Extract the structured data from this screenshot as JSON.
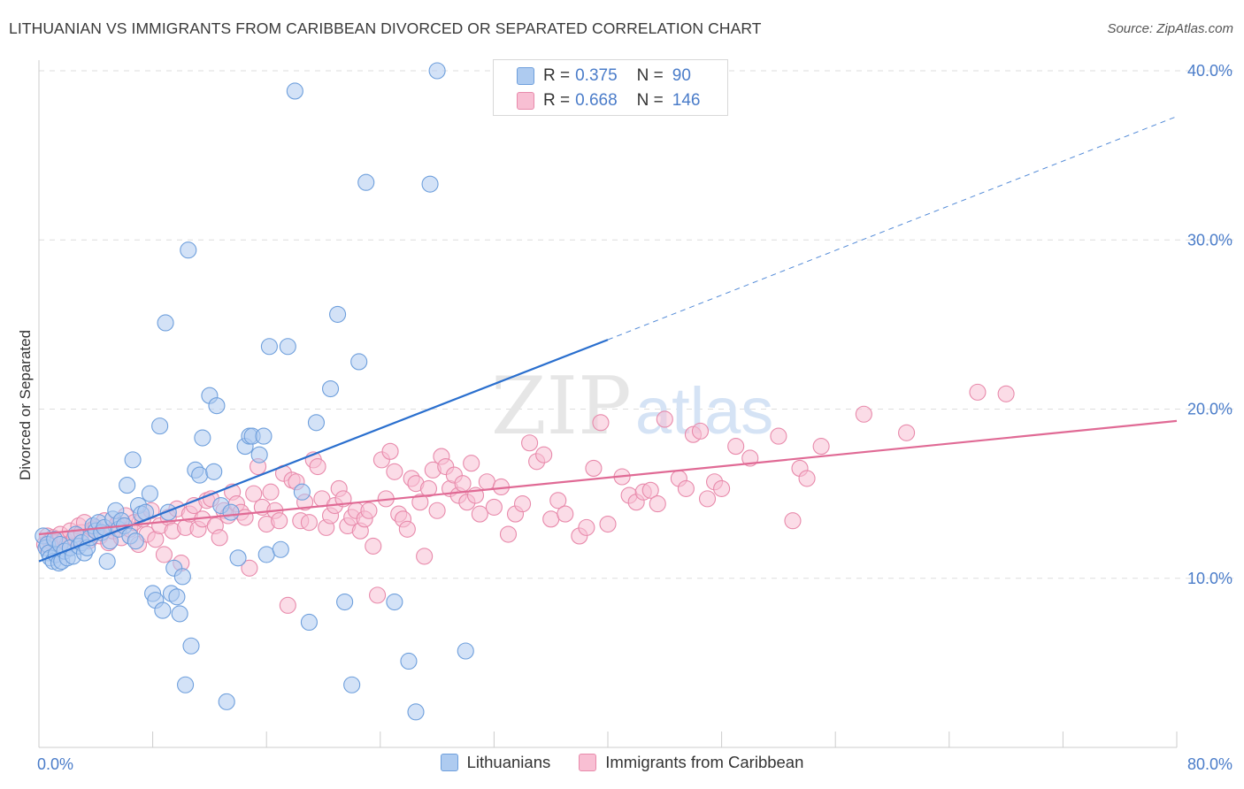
{
  "title": "LITHUANIAN VS IMMIGRANTS FROM CARIBBEAN DIVORCED OR SEPARATED CORRELATION CHART",
  "source": "Source: ZipAtlas.com",
  "watermark": "ZIPatlas",
  "colors": {
    "lithuanian_fill": "#aecbf0",
    "lithuanian_stroke": "#6e9fdc",
    "lithuanian_line": "#2a6fce",
    "caribbean_fill": "#f8bfd3",
    "caribbean_stroke": "#e88aab",
    "caribbean_line": "#e06a95",
    "tick_text": "#4a7cc9"
  },
  "legend": {
    "rows": [
      {
        "r_label": "R =",
        "r_value": "0.375",
        "n_label": "N =",
        "n_value": "90"
      },
      {
        "r_label": "R =",
        "r_value": "0.668",
        "n_label": "N =",
        "n_value": "146"
      }
    ]
  },
  "bottom_legend": [
    "Lithuanians",
    "Immigrants from Caribbean"
  ],
  "chart_data": {
    "type": "scatter",
    "title": "LITHUANIAN VS IMMIGRANTS FROM CARIBBEAN DIVORCED OR SEPARATED CORRELATION CHART",
    "xlabel": "",
    "ylabel": "Divorced or Separated",
    "xlim": [
      0,
      80
    ],
    "ylim": [
      0,
      40
    ],
    "x_tick_labels": [
      "0.0%",
      "80.0%"
    ],
    "y_ticks": [
      10,
      20,
      30,
      40
    ],
    "y_tick_labels": [
      "10.0%",
      "20.0%",
      "30.0%",
      "40.0%"
    ],
    "grid": true,
    "legend_position": "top-center",
    "series": [
      {
        "name": "Lithuanians",
        "r": 0.375,
        "n": 90,
        "trend": {
          "x": [
            0,
            40
          ],
          "y": [
            11.0,
            24.1
          ],
          "dashed_extension": {
            "x": [
              40,
              80
            ],
            "y": [
              24.1,
              37.3
            ]
          }
        },
        "points": [
          [
            0.3,
            12.5
          ],
          [
            0.5,
            11.8
          ],
          [
            0.6,
            12.0
          ],
          [
            0.7,
            11.5
          ],
          [
            0.8,
            11.2
          ],
          [
            1.0,
            11.0
          ],
          [
            1.1,
            12.3
          ],
          [
            1.2,
            11.4
          ],
          [
            1.4,
            10.9
          ],
          [
            1.5,
            12.0
          ],
          [
            1.6,
            11.0
          ],
          [
            1.8,
            11.6
          ],
          [
            2.0,
            11.2
          ],
          [
            2.2,
            11.8
          ],
          [
            2.4,
            11.3
          ],
          [
            2.6,
            12.6
          ],
          [
            2.8,
            11.9
          ],
          [
            3.0,
            12.1
          ],
          [
            3.2,
            11.5
          ],
          [
            3.4,
            11.8
          ],
          [
            3.6,
            12.4
          ],
          [
            3.8,
            13.1
          ],
          [
            4.0,
            12.8
          ],
          [
            4.2,
            13.3
          ],
          [
            4.4,
            12.7
          ],
          [
            4.6,
            13.0
          ],
          [
            4.8,
            11.0
          ],
          [
            5.0,
            12.2
          ],
          [
            5.2,
            13.5
          ],
          [
            5.4,
            14.0
          ],
          [
            5.6,
            12.9
          ],
          [
            5.8,
            13.4
          ],
          [
            6.0,
            13.1
          ],
          [
            6.2,
            15.5
          ],
          [
            6.4,
            12.5
          ],
          [
            6.6,
            17.0
          ],
          [
            6.8,
            12.2
          ],
          [
            7.0,
            14.3
          ],
          [
            7.2,
            13.8
          ],
          [
            7.5,
            13.9
          ],
          [
            7.8,
            15.0
          ],
          [
            8.0,
            9.1
          ],
          [
            8.2,
            8.7
          ],
          [
            8.5,
            19.0
          ],
          [
            8.7,
            8.1
          ],
          [
            8.9,
            25.1
          ],
          [
            9.1,
            13.9
          ],
          [
            9.3,
            9.1
          ],
          [
            9.5,
            10.6
          ],
          [
            9.7,
            8.9
          ],
          [
            9.9,
            7.9
          ],
          [
            10.1,
            10.1
          ],
          [
            10.3,
            3.7
          ],
          [
            10.5,
            29.4
          ],
          [
            10.7,
            6.0
          ],
          [
            11.0,
            16.4
          ],
          [
            11.3,
            16.1
          ],
          [
            11.5,
            18.3
          ],
          [
            12.0,
            20.8
          ],
          [
            12.3,
            16.3
          ],
          [
            12.5,
            20.2
          ],
          [
            12.8,
            14.3
          ],
          [
            13.2,
            2.7
          ],
          [
            13.5,
            13.9
          ],
          [
            14.0,
            11.2
          ],
          [
            14.5,
            17.8
          ],
          [
            14.8,
            18.4
          ],
          [
            15.0,
            18.4
          ],
          [
            15.5,
            17.3
          ],
          [
            15.8,
            18.4
          ],
          [
            16.0,
            11.4
          ],
          [
            16.2,
            23.7
          ],
          [
            17.0,
            11.7
          ],
          [
            17.5,
            23.7
          ],
          [
            18.0,
            38.8
          ],
          [
            18.5,
            15.1
          ],
          [
            19.0,
            7.4
          ],
          [
            19.5,
            19.2
          ],
          [
            20.5,
            21.2
          ],
          [
            21.0,
            25.6
          ],
          [
            21.5,
            8.6
          ],
          [
            22.0,
            3.7
          ],
          [
            22.5,
            22.8
          ],
          [
            23.0,
            33.4
          ],
          [
            25.0,
            8.6
          ],
          [
            26.0,
            5.1
          ],
          [
            26.5,
            2.1
          ],
          [
            27.5,
            33.3
          ],
          [
            28.0,
            40.0
          ],
          [
            30.0,
            5.7
          ]
        ]
      },
      {
        "name": "Immigrants from Caribbean",
        "r": 0.668,
        "n": 146,
        "trend": {
          "x": [
            0,
            80
          ],
          "y": [
            12.6,
            19.3
          ]
        },
        "points": [
          [
            0.4,
            12.0
          ],
          [
            0.6,
            12.5
          ],
          [
            0.8,
            12.2
          ],
          [
            1.0,
            12.4
          ],
          [
            1.2,
            12.1
          ],
          [
            1.5,
            12.6
          ],
          [
            1.8,
            12.3
          ],
          [
            2.0,
            12.0
          ],
          [
            2.2,
            12.8
          ],
          [
            2.5,
            12.4
          ],
          [
            2.8,
            13.1
          ],
          [
            3.0,
            12.7
          ],
          [
            3.2,
            13.3
          ],
          [
            3.5,
            12.2
          ],
          [
            3.8,
            12.9
          ],
          [
            4.0,
            13.0
          ],
          [
            4.3,
            12.5
          ],
          [
            4.6,
            13.4
          ],
          [
            4.9,
            12.1
          ],
          [
            5.2,
            12.8
          ],
          [
            5.5,
            13.2
          ],
          [
            5.8,
            12.4
          ],
          [
            6.1,
            13.7
          ],
          [
            6.4,
            12.9
          ],
          [
            6.7,
            13.3
          ],
          [
            7.0,
            12.0
          ],
          [
            7.3,
            13.5
          ],
          [
            7.6,
            12.6
          ],
          [
            7.9,
            14.0
          ],
          [
            8.2,
            12.3
          ],
          [
            8.5,
            13.1
          ],
          [
            8.8,
            11.4
          ],
          [
            9.1,
            13.6
          ],
          [
            9.4,
            12.8
          ],
          [
            9.7,
            14.1
          ],
          [
            10.0,
            10.9
          ],
          [
            10.3,
            13.0
          ],
          [
            10.6,
            13.8
          ],
          [
            10.9,
            14.3
          ],
          [
            11.2,
            12.9
          ],
          [
            11.5,
            13.5
          ],
          [
            11.8,
            14.6
          ],
          [
            12.1,
            14.7
          ],
          [
            12.4,
            13.1
          ],
          [
            12.7,
            12.4
          ],
          [
            13.0,
            14.0
          ],
          [
            13.3,
            13.7
          ],
          [
            13.6,
            15.1
          ],
          [
            13.9,
            14.4
          ],
          [
            14.2,
            13.9
          ],
          [
            14.5,
            13.6
          ],
          [
            14.8,
            10.6
          ],
          [
            15.1,
            15.0
          ],
          [
            15.4,
            16.6
          ],
          [
            15.7,
            14.2
          ],
          [
            16.0,
            13.2
          ],
          [
            16.3,
            15.1
          ],
          [
            16.6,
            14.0
          ],
          [
            16.9,
            13.4
          ],
          [
            17.2,
            16.2
          ],
          [
            17.5,
            8.4
          ],
          [
            17.8,
            15.8
          ],
          [
            18.1,
            15.7
          ],
          [
            18.4,
            13.4
          ],
          [
            18.7,
            14.5
          ],
          [
            19.0,
            13.3
          ],
          [
            19.3,
            17.0
          ],
          [
            19.6,
            16.6
          ],
          [
            19.9,
            14.7
          ],
          [
            20.2,
            13.0
          ],
          [
            20.5,
            13.7
          ],
          [
            20.8,
            14.3
          ],
          [
            21.1,
            15.3
          ],
          [
            21.4,
            14.7
          ],
          [
            21.7,
            13.1
          ],
          [
            22.0,
            13.6
          ],
          [
            22.3,
            14.0
          ],
          [
            22.6,
            12.8
          ],
          [
            22.9,
            13.5
          ],
          [
            23.2,
            14.0
          ],
          [
            23.5,
            11.9
          ],
          [
            23.8,
            9.0
          ],
          [
            24.1,
            17.0
          ],
          [
            24.4,
            14.7
          ],
          [
            24.7,
            17.5
          ],
          [
            25.0,
            16.3
          ],
          [
            25.3,
            13.8
          ],
          [
            25.6,
            13.5
          ],
          [
            25.9,
            12.9
          ],
          [
            26.2,
            15.9
          ],
          [
            26.5,
            15.6
          ],
          [
            26.8,
            14.5
          ],
          [
            27.1,
            11.3
          ],
          [
            27.4,
            15.3
          ],
          [
            27.7,
            16.4
          ],
          [
            28.0,
            14.0
          ],
          [
            28.3,
            17.2
          ],
          [
            28.6,
            16.6
          ],
          [
            28.9,
            15.3
          ],
          [
            29.2,
            16.1
          ],
          [
            29.5,
            14.9
          ],
          [
            29.8,
            15.6
          ],
          [
            30.1,
            14.5
          ],
          [
            30.4,
            16.8
          ],
          [
            30.7,
            14.9
          ],
          [
            31.0,
            13.8
          ],
          [
            31.5,
            15.7
          ],
          [
            32.0,
            14.2
          ],
          [
            32.5,
            15.4
          ],
          [
            33.0,
            12.6
          ],
          [
            33.5,
            13.8
          ],
          [
            34.0,
            14.4
          ],
          [
            34.5,
            18.0
          ],
          [
            35.0,
            16.9
          ],
          [
            35.5,
            17.3
          ],
          [
            36.0,
            13.5
          ],
          [
            36.5,
            14.6
          ],
          [
            37.0,
            13.8
          ],
          [
            38.0,
            12.5
          ],
          [
            38.5,
            13.0
          ],
          [
            39.0,
            16.5
          ],
          [
            39.5,
            19.2
          ],
          [
            40.0,
            13.2
          ],
          [
            41.0,
            16.0
          ],
          [
            41.5,
            14.9
          ],
          [
            42.0,
            14.5
          ],
          [
            42.5,
            15.1
          ],
          [
            43.0,
            15.2
          ],
          [
            43.5,
            14.4
          ],
          [
            44.0,
            19.4
          ],
          [
            45.0,
            15.9
          ],
          [
            45.5,
            15.3
          ],
          [
            46.0,
            18.5
          ],
          [
            46.5,
            18.7
          ],
          [
            47.0,
            14.7
          ],
          [
            47.5,
            15.7
          ],
          [
            48.0,
            15.3
          ],
          [
            49.0,
            17.8
          ],
          [
            50.0,
            17.1
          ],
          [
            52.0,
            18.4
          ],
          [
            53.0,
            13.4
          ],
          [
            53.5,
            16.5
          ],
          [
            54.0,
            15.9
          ],
          [
            55.0,
            17.8
          ],
          [
            58.0,
            19.7
          ],
          [
            61.0,
            18.6
          ],
          [
            66.0,
            21.0
          ],
          [
            68.0,
            20.9
          ]
        ]
      }
    ]
  }
}
